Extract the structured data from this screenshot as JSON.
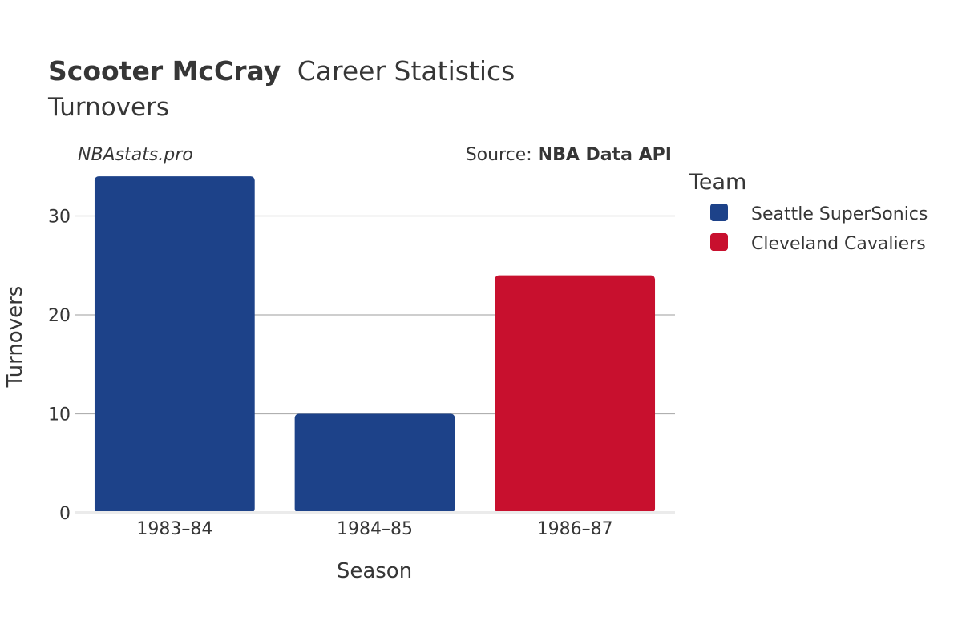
{
  "chart_data": {
    "type": "bar",
    "title_bold": "Scooter McCray",
    "title_rest": "Career Statistics",
    "subtitle": "Turnovers",
    "watermark": "NBAstats.pro",
    "source_prefix": "Source: ",
    "source_bold": "NBA Data API",
    "xlabel": "Season",
    "ylabel": "Turnovers",
    "categories": [
      "1983–84",
      "1984–85",
      "1986–87"
    ],
    "values": [
      34,
      10,
      24
    ],
    "bar_teams": [
      "Seattle SuperSonics",
      "Seattle SuperSonics",
      "Cleveland Cavaliers"
    ],
    "ylim": [
      0,
      35.79
    ],
    "yticks": [
      0,
      10,
      20,
      30
    ],
    "legend": {
      "title": "Team",
      "entries": [
        {
          "name": "Seattle SuperSonics",
          "color": "#1d4289"
        },
        {
          "name": "Cleveland Cavaliers",
          "color": "#c8102e"
        }
      ]
    },
    "colors": {
      "text": "#363636",
      "grid": "#b0b0b0",
      "baseline": "#ebebeb"
    }
  }
}
